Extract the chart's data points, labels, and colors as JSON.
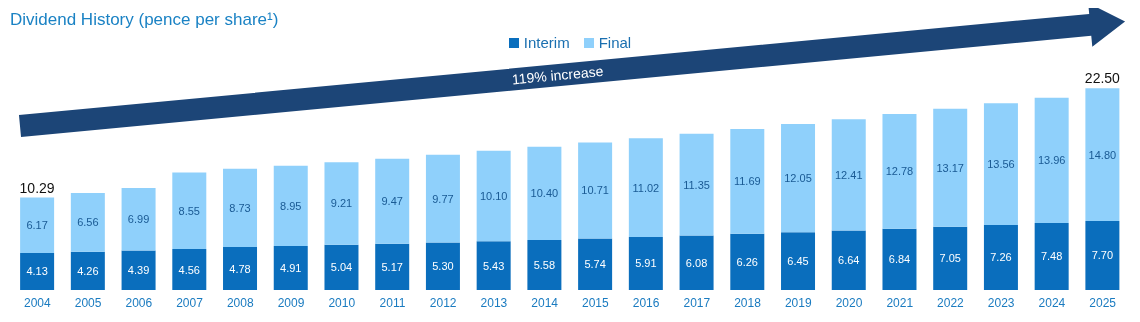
{
  "chart_data": {
    "type": "bar",
    "title": "Dividend History (pence per share¹)",
    "stacked": true,
    "legend": "top",
    "data_labels": true,
    "categories": [
      "2004",
      "2005",
      "2006",
      "2007",
      "2008",
      "2009",
      "2010",
      "2011",
      "2012",
      "2013",
      "2014",
      "2015",
      "2016",
      "2017",
      "2018",
      "2019",
      "2020",
      "2021",
      "2022",
      "2023",
      "2024",
      "2025"
    ],
    "series": [
      {
        "name": "Interim",
        "color": "#0a6ebd",
        "values": [
          4.13,
          4.26,
          4.39,
          4.56,
          4.78,
          4.91,
          5.04,
          5.17,
          5.3,
          5.43,
          5.58,
          5.74,
          5.91,
          6.08,
          6.26,
          6.45,
          6.64,
          6.84,
          7.05,
          7.26,
          7.48,
          7.7
        ],
        "value_labels": [
          "4.13",
          "4.26",
          "4.39",
          "4.56",
          "4.78",
          "4.91",
          "5.04",
          "5.17",
          "5.30",
          "5.43",
          "5.58",
          "5.74",
          "5.91",
          "6.08",
          "6.26",
          "6.45",
          "6.64",
          "6.84",
          "7.05",
          "7.26",
          "7.48",
          "7.70"
        ]
      },
      {
        "name": "Final",
        "color": "#8fd0fb",
        "values": [
          6.17,
          6.56,
          6.99,
          8.55,
          8.73,
          8.95,
          9.21,
          9.47,
          9.77,
          10.1,
          10.4,
          10.71,
          11.02,
          11.35,
          11.69,
          12.05,
          12.41,
          12.78,
          13.17,
          13.56,
          13.96,
          14.8
        ],
        "value_labels": [
          "6.17",
          "6.56",
          "6.99",
          "8.55",
          "8.73",
          "8.95",
          "9.21",
          "9.47",
          "9.77",
          "10.10",
          "10.40",
          "10.71",
          "11.02",
          "11.35",
          "11.69",
          "12.05",
          "12.41",
          "12.78",
          "13.17",
          "13.56",
          "13.96",
          "14.80"
        ]
      }
    ],
    "totals": [
      "10.29",
      null,
      null,
      null,
      null,
      null,
      null,
      null,
      null,
      null,
      null,
      null,
      null,
      null,
      null,
      null,
      null,
      null,
      null,
      null,
      null,
      "22.50"
    ],
    "annotations": [
      "119% increase"
    ]
  }
}
